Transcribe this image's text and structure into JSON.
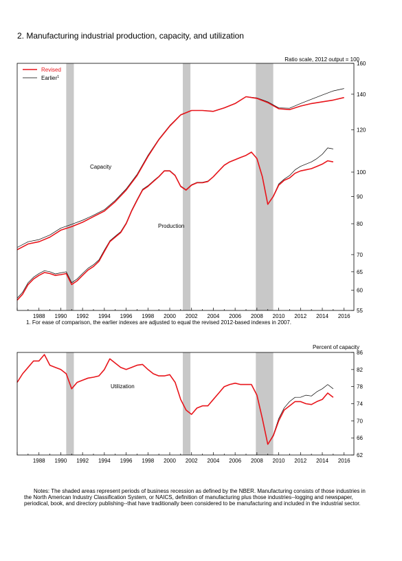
{
  "title": "2. Manufacturing industrial production, capacity, and utilization",
  "footnote": "1. For ease of comparison, the earlier indexes are adjusted to equal the revised 2012-based indexes in 2007.",
  "notes": "Notes: The shaded areas represent periods of business recession as defined by the NBER. Manufacturing consists of those industries in the North American Industry Classification System, or NAICS, definition of manufacturing plus those industries--logging and newspaper, periodical, book, and directory publishing--that have traditionally been considered to be manufacturing and included in the industrial sector.",
  "colors": {
    "revised": "#e8141a",
    "earlier": "#000000",
    "recession": "#c8c8c8"
  },
  "chart_data": [
    {
      "type": "line",
      "ylabel": "Ratio scale, 2012 output = 100",
      "yscale": "log",
      "ylim": [
        55,
        160
      ],
      "xlim": [
        1986.0,
        2016.9
      ],
      "yticks": [
        55,
        60,
        65,
        70,
        80,
        90,
        100,
        120,
        140,
        160
      ],
      "xticks": [
        "1988",
        "1990",
        "1992",
        "1994",
        "1996",
        "1998",
        "2000",
        "2002",
        "2004",
        "2006",
        "2008",
        "2010",
        "2012",
        "2014",
        "2016"
      ],
      "recessions": [
        [
          1990.5,
          1991.2
        ],
        [
          2001.2,
          2001.9
        ],
        [
          2007.9,
          2009.5
        ]
      ],
      "legend": {
        "position": "top-left",
        "entries": [
          {
            "label": "Revised",
            "series": "revised"
          },
          {
            "label": "Earlier",
            "superscript": "1",
            "series": "earlier"
          }
        ]
      },
      "annotations": [
        "Capacity",
        "Production"
      ],
      "series": [
        {
          "name": "Capacity",
          "version": "revised",
          "x": [
            1986.0,
            1987.0,
            1988.0,
            1989.0,
            1990.0,
            1991.0,
            1992.0,
            1993.0,
            1994.0,
            1995.0,
            1996.0,
            1997.0,
            1998.0,
            1999.0,
            2000.0,
            2001.0,
            2002.0,
            2003.0,
            2004.0,
            2005.0,
            2006.0,
            2007.0,
            2008.0,
            2009.0,
            2010.0,
            2011.0,
            2012.0,
            2013.0,
            2014.0,
            2015.0,
            2016.0
          ],
          "y": [
            71.5,
            73.3,
            74.0,
            75.5,
            77.8,
            79.0,
            80.5,
            82.5,
            84.5,
            88.0,
            92.5,
            98.5,
            107.0,
            115.0,
            122.0,
            128.0,
            130.5,
            130.5,
            130.0,
            132.0,
            134.5,
            138.5,
            137.5,
            135.0,
            131.5,
            131.0,
            133.0,
            134.5,
            135.5,
            136.5,
            138.0
          ]
        },
        {
          "name": "Capacity",
          "version": "earlier",
          "x": [
            1986.0,
            1987.0,
            1988.0,
            1989.0,
            1990.0,
            1991.0,
            1992.0,
            1993.0,
            1994.0,
            1995.0,
            1996.0,
            1997.0,
            1998.0,
            1999.0,
            2000.0,
            2001.0,
            2002.0,
            2003.0,
            2004.0,
            2005.0,
            2006.0,
            2007.0,
            2008.0,
            2009.0,
            2010.0,
            2011.0,
            2012.0,
            2013.0,
            2014.0,
            2015.0,
            2016.0
          ],
          "y": [
            72.2,
            74.0,
            74.7,
            76.2,
            78.5,
            79.8,
            81.2,
            83.0,
            85.0,
            88.5,
            93.0,
            99.0,
            107.5,
            115.3,
            122.3,
            128.2,
            130.6,
            130.6,
            130.1,
            132.1,
            134.6,
            138.6,
            137.8,
            135.5,
            132.0,
            131.8,
            134.5,
            137.0,
            139.5,
            142.0,
            143.5
          ]
        },
        {
          "name": "Production",
          "version": "revised",
          "x": [
            1986.0,
            1986.5,
            1987.0,
            1987.5,
            1988.0,
            1988.5,
            1989.0,
            1989.5,
            1990.0,
            1990.5,
            1991.0,
            1991.5,
            1992.0,
            1992.5,
            1993.0,
            1993.5,
            1994.0,
            1994.5,
            1995.0,
            1995.5,
            1996.0,
            1996.5,
            1997.0,
            1997.5,
            1998.0,
            1998.5,
            1999.0,
            1999.5,
            2000.0,
            2000.5,
            2001.0,
            2001.5,
            2002.0,
            2002.5,
            2003.0,
            2003.5,
            2004.0,
            2004.5,
            2005.0,
            2005.5,
            2006.0,
            2006.5,
            2007.0,
            2007.5,
            2008.0,
            2008.5,
            2009.0,
            2009.5,
            2010.0,
            2010.5,
            2011.0,
            2011.5,
            2012.0,
            2012.5,
            2013.0,
            2013.5,
            2014.0,
            2014.5,
            2015.0
          ],
          "y": [
            57.5,
            59.0,
            61.5,
            63.0,
            64.0,
            64.8,
            64.5,
            64.0,
            64.2,
            64.5,
            61.5,
            62.5,
            64.0,
            65.5,
            66.5,
            68.0,
            71.0,
            74.0,
            75.5,
            77.0,
            80.0,
            84.5,
            88.5,
            92.5,
            94.0,
            96.0,
            98.0,
            100.5,
            100.5,
            98.5,
            94.0,
            92.5,
            94.5,
            95.5,
            95.5,
            96.0,
            98.0,
            100.5,
            103.0,
            104.5,
            105.5,
            106.5,
            107.5,
            109.0,
            106.0,
            98.0,
            87.0,
            90.0,
            94.5,
            96.5,
            97.5,
            99.5,
            100.5,
            101.0,
            101.5,
            102.5,
            103.5,
            105.0,
            104.5
          ]
        },
        {
          "name": "Production",
          "version": "earlier",
          "x": [
            1986.0,
            1986.5,
            1987.0,
            1987.5,
            1988.0,
            1988.5,
            1989.0,
            1989.5,
            1990.0,
            1990.5,
            1991.0,
            1991.5,
            1992.0,
            1992.5,
            1993.0,
            1993.5,
            1994.0,
            1994.5,
            1995.0,
            1995.5,
            1996.0,
            1996.5,
            1997.0,
            1997.5,
            1998.0,
            1998.5,
            1999.0,
            1999.5,
            2000.0,
            2000.5,
            2001.0,
            2001.5,
            2002.0,
            2002.5,
            2003.0,
            2003.5,
            2004.0,
            2004.5,
            2005.0,
            2005.5,
            2006.0,
            2006.5,
            2007.0,
            2007.5,
            2008.0,
            2008.5,
            2009.0,
            2009.5,
            2010.0,
            2010.5,
            2011.0,
            2011.5,
            2012.0,
            2012.5,
            2013.0,
            2013.5,
            2014.0,
            2014.5,
            2015.0
          ],
          "y": [
            58.0,
            59.5,
            62.0,
            63.5,
            64.5,
            65.3,
            65.0,
            64.4,
            64.7,
            65.0,
            62.0,
            63.0,
            64.5,
            66.0,
            67.0,
            68.4,
            71.4,
            74.3,
            75.8,
            77.3,
            80.3,
            84.8,
            88.8,
            92.8,
            94.3,
            96.3,
            98.2,
            100.7,
            100.7,
            98.7,
            94.2,
            92.7,
            94.7,
            95.7,
            95.7,
            96.2,
            98.1,
            100.6,
            103.1,
            104.6,
            105.6,
            106.6,
            107.5,
            109.0,
            106.0,
            98.0,
            87.0,
            90.2,
            95.0,
            97.0,
            98.5,
            101.0,
            102.5,
            103.5,
            104.5,
            106.0,
            108.0,
            111.0,
            110.5
          ]
        }
      ]
    },
    {
      "type": "line",
      "ylabel": "Percent of capacity",
      "ylim": [
        62,
        86
      ],
      "xlim": [
        1986.0,
        2016.9
      ],
      "yticks": [
        62,
        66,
        70,
        74,
        78,
        82,
        86
      ],
      "xticks": [
        "1988",
        "1990",
        "1992",
        "1994",
        "1996",
        "1998",
        "2000",
        "2002",
        "2004",
        "2006",
        "2008",
        "2010",
        "2012",
        "2014",
        "2016"
      ],
      "recessions": [
        [
          1990.5,
          1991.2
        ],
        [
          2001.2,
          2001.9
        ],
        [
          2007.9,
          2009.5
        ]
      ],
      "annotations": [
        "Utilization"
      ],
      "series": [
        {
          "name": "Utilization",
          "version": "revised",
          "x": [
            1986.0,
            1986.5,
            1987.0,
            1987.5,
            1988.0,
            1988.5,
            1989.0,
            1989.5,
            1990.0,
            1990.5,
            1991.0,
            1991.5,
            1992.0,
            1992.5,
            1993.0,
            1993.5,
            1994.0,
            1994.5,
            1995.0,
            1995.5,
            1996.0,
            1996.5,
            1997.0,
            1997.5,
            1998.0,
            1998.5,
            1999.0,
            1999.5,
            2000.0,
            2000.5,
            2001.0,
            2001.5,
            2002.0,
            2002.5,
            2003.0,
            2003.5,
            2004.0,
            2004.5,
            2005.0,
            2005.5,
            2006.0,
            2006.5,
            2007.0,
            2007.5,
            2008.0,
            2008.5,
            2009.0,
            2009.5,
            2010.0,
            2010.5,
            2011.0,
            2011.5,
            2012.0,
            2012.5,
            2013.0,
            2013.5,
            2014.0,
            2014.5,
            2015.0
          ],
          "y": [
            79.0,
            81.0,
            82.5,
            84.0,
            84.0,
            85.5,
            83.0,
            82.5,
            82.0,
            81.0,
            77.5,
            79.0,
            79.5,
            80.0,
            80.2,
            80.5,
            82.0,
            84.5,
            83.5,
            82.5,
            82.0,
            82.5,
            83.0,
            83.2,
            82.0,
            81.0,
            80.5,
            80.5,
            80.8,
            79.0,
            75.0,
            72.5,
            71.5,
            73.0,
            73.5,
            73.5,
            75.0,
            76.5,
            78.0,
            78.5,
            78.8,
            78.5,
            78.5,
            78.5,
            76.0,
            70.5,
            64.5,
            66.5,
            70.0,
            72.5,
            73.5,
            74.5,
            74.5,
            74.0,
            73.8,
            74.5,
            75.0,
            76.5,
            75.5
          ]
        },
        {
          "name": "Utilization",
          "version": "earlier",
          "x": [
            1986.0,
            1986.5,
            1987.0,
            1987.5,
            1988.0,
            1988.5,
            1989.0,
            1989.5,
            1990.0,
            1990.5,
            1991.0,
            1991.5,
            1992.0,
            1992.5,
            1993.0,
            1993.5,
            1994.0,
            1994.5,
            1995.0,
            1995.5,
            1996.0,
            1996.5,
            1997.0,
            1997.5,
            1998.0,
            1998.5,
            1999.0,
            1999.5,
            2000.0,
            2000.5,
            2001.0,
            2001.5,
            2002.0,
            2002.5,
            2003.0,
            2003.5,
            2004.0,
            2004.5,
            2005.0,
            2005.5,
            2006.0,
            2006.5,
            2007.0,
            2007.5,
            2008.0,
            2008.5,
            2009.0,
            2009.5,
            2010.0,
            2010.5,
            2011.0,
            2011.5,
            2012.0,
            2012.5,
            2013.0,
            2013.5,
            2014.0,
            2014.5,
            2015.0
          ],
          "y": [
            79.0,
            81.0,
            82.5,
            84.0,
            84.0,
            85.5,
            83.0,
            82.5,
            82.0,
            81.0,
            77.5,
            79.0,
            79.5,
            80.0,
            80.2,
            80.5,
            82.0,
            84.5,
            83.5,
            82.5,
            82.0,
            82.5,
            83.0,
            83.2,
            82.0,
            81.0,
            80.5,
            80.5,
            80.8,
            79.0,
            75.0,
            72.5,
            71.5,
            73.0,
            73.5,
            73.5,
            75.0,
            76.5,
            78.0,
            78.5,
            78.8,
            78.5,
            78.5,
            78.5,
            76.0,
            70.5,
            64.5,
            66.7,
            70.5,
            73.0,
            74.5,
            75.5,
            75.5,
            76.0,
            75.8,
            76.8,
            77.5,
            78.5,
            77.5
          ]
        }
      ]
    }
  ]
}
